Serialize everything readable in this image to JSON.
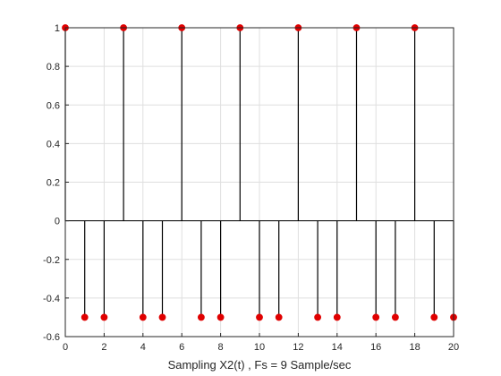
{
  "chart_data": {
    "type": "stem",
    "title": "",
    "xlabel": "Sampling X2(t) , Fs = 9 Sample/sec",
    "ylabel": "",
    "xlim": [
      0,
      20
    ],
    "ylim": [
      -0.6,
      1
    ],
    "grid": true,
    "x_ticks": [
      "0",
      "2",
      "4",
      "6",
      "8",
      "10",
      "12",
      "14",
      "16",
      "18",
      "20"
    ],
    "y_ticks": [
      "-0.6",
      "-0.4",
      "-0.2",
      "0",
      "0.2",
      "0.4",
      "0.6",
      "0.8",
      "1"
    ],
    "x_tick_values": [
      0,
      2,
      4,
      6,
      8,
      10,
      12,
      14,
      16,
      18,
      20
    ],
    "y_tick_values": [
      -0.6,
      -0.4,
      -0.2,
      0,
      0.2,
      0.4,
      0.6,
      0.8,
      1
    ],
    "series": [
      {
        "x": [
          0,
          1,
          2,
          3,
          4,
          5,
          6,
          7,
          8,
          9,
          10,
          11,
          12,
          13,
          14,
          15,
          16,
          17,
          18,
          19,
          20
        ],
        "y": [
          1,
          -0.5,
          -0.5,
          1,
          -0.5,
          -0.5,
          1,
          -0.5,
          -0.5,
          1,
          -0.5,
          -0.5,
          1,
          -0.5,
          -0.5,
          1,
          -0.5,
          -0.5,
          1,
          -0.5,
          -0.5
        ],
        "stem_color": "#000000",
        "marker_color": "#e00000"
      }
    ]
  }
}
